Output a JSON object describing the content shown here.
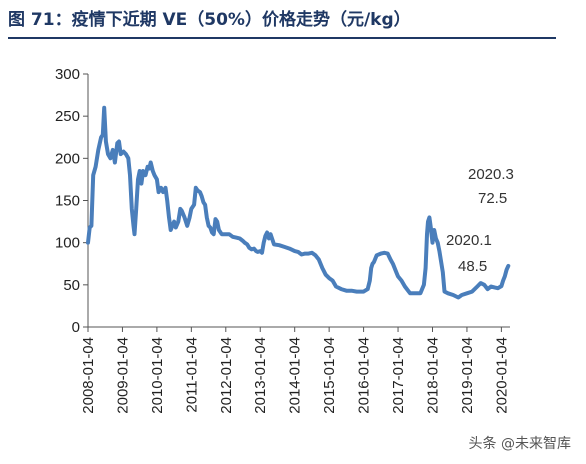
{
  "title": "图 71：疫情下近期 VE（50%）价格走势（元/kg）",
  "watermark": "头条 @未来智库",
  "chart_data": {
    "type": "line",
    "series": [
      {
        "color": "#4a7ebb",
        "points": [
          [
            2008.0,
            100
          ],
          [
            2008.05,
            118
          ],
          [
            2008.1,
            120
          ],
          [
            2008.15,
            180
          ],
          [
            2008.22,
            190
          ],
          [
            2008.3,
            210
          ],
          [
            2008.38,
            225
          ],
          [
            2008.43,
            228
          ],
          [
            2008.47,
            260
          ],
          [
            2008.52,
            220
          ],
          [
            2008.58,
            205
          ],
          [
            2008.65,
            200
          ],
          [
            2008.72,
            210
          ],
          [
            2008.78,
            195
          ],
          [
            2008.85,
            218
          ],
          [
            2008.9,
            220
          ],
          [
            2008.95,
            205
          ],
          [
            2009.03,
            208
          ],
          [
            2009.1,
            205
          ],
          [
            2009.17,
            200
          ],
          [
            2009.22,
            180
          ],
          [
            2009.27,
            140
          ],
          [
            2009.32,
            120
          ],
          [
            2009.35,
            110
          ],
          [
            2009.4,
            140
          ],
          [
            2009.45,
            175
          ],
          [
            2009.5,
            185
          ],
          [
            2009.55,
            170
          ],
          [
            2009.6,
            185
          ],
          [
            2009.67,
            180
          ],
          [
            2009.73,
            190
          ],
          [
            2009.78,
            188
          ],
          [
            2009.82,
            195
          ],
          [
            2009.88,
            185
          ],
          [
            2009.93,
            180
          ],
          [
            2010.0,
            175
          ],
          [
            2010.05,
            160
          ],
          [
            2010.12,
            165
          ],
          [
            2010.18,
            160
          ],
          [
            2010.25,
            165
          ],
          [
            2010.3,
            150
          ],
          [
            2010.35,
            130
          ],
          [
            2010.4,
            115
          ],
          [
            2010.45,
            120
          ],
          [
            2010.5,
            125
          ],
          [
            2010.55,
            118
          ],
          [
            2010.62,
            125
          ],
          [
            2010.68,
            140
          ],
          [
            2010.72,
            138
          ],
          [
            2010.8,
            130
          ],
          [
            2010.88,
            120
          ],
          [
            2010.95,
            130
          ],
          [
            2011.0,
            140
          ],
          [
            2011.08,
            145
          ],
          [
            2011.13,
            165
          ],
          [
            2011.18,
            162
          ],
          [
            2011.25,
            160
          ],
          [
            2011.3,
            155
          ],
          [
            2011.35,
            148
          ],
          [
            2011.4,
            145
          ],
          [
            2011.45,
            130
          ],
          [
            2011.5,
            120
          ],
          [
            2011.55,
            118
          ],
          [
            2011.6,
            112
          ],
          [
            2011.65,
            110
          ],
          [
            2011.7,
            128
          ],
          [
            2011.75,
            125
          ],
          [
            2011.8,
            115
          ],
          [
            2011.88,
            110
          ],
          [
            2012.0,
            110
          ],
          [
            2012.1,
            110
          ],
          [
            2012.2,
            107
          ],
          [
            2012.3,
            106
          ],
          [
            2012.4,
            105
          ],
          [
            2012.5,
            102
          ],
          [
            2012.55,
            100
          ],
          [
            2012.62,
            98
          ],
          [
            2012.68,
            94
          ],
          [
            2012.75,
            92
          ],
          [
            2012.82,
            93
          ],
          [
            2012.88,
            90
          ],
          [
            2012.93,
            89
          ],
          [
            2013.0,
            90
          ],
          [
            2013.05,
            88
          ],
          [
            2013.1,
            100
          ],
          [
            2013.15,
            108
          ],
          [
            2013.2,
            112
          ],
          [
            2013.25,
            105
          ],
          [
            2013.3,
            110
          ],
          [
            2013.4,
            98
          ],
          [
            2013.55,
            97
          ],
          [
            2013.7,
            95
          ],
          [
            2013.85,
            93
          ],
          [
            2014.0,
            90
          ],
          [
            2014.1,
            89
          ],
          [
            2014.2,
            86
          ],
          [
            2014.3,
            87
          ],
          [
            2014.4,
            87
          ],
          [
            2014.5,
            88
          ],
          [
            2014.6,
            85
          ],
          [
            2014.7,
            80
          ],
          [
            2014.8,
            70
          ],
          [
            2014.9,
            62
          ],
          [
            2015.0,
            58
          ],
          [
            2015.1,
            55
          ],
          [
            2015.2,
            48
          ],
          [
            2015.35,
            45
          ],
          [
            2015.5,
            43
          ],
          [
            2015.65,
            43
          ],
          [
            2015.8,
            42
          ],
          [
            2015.95,
            42
          ],
          [
            2016.0,
            42
          ],
          [
            2016.12,
            45
          ],
          [
            2016.18,
            55
          ],
          [
            2016.22,
            70
          ],
          [
            2016.26,
            75
          ],
          [
            2016.3,
            77
          ],
          [
            2016.38,
            85
          ],
          [
            2016.5,
            87
          ],
          [
            2016.6,
            88
          ],
          [
            2016.7,
            87
          ],
          [
            2016.78,
            80
          ],
          [
            2016.85,
            75
          ],
          [
            2016.9,
            70
          ],
          [
            2016.95,
            65
          ],
          [
            2017.0,
            60
          ],
          [
            2017.1,
            55
          ],
          [
            2017.2,
            48
          ],
          [
            2017.35,
            40
          ],
          [
            2017.5,
            40
          ],
          [
            2017.65,
            40
          ],
          [
            2017.75,
            50
          ],
          [
            2017.8,
            70
          ],
          [
            2017.84,
            110
          ],
          [
            2017.87,
            125
          ],
          [
            2017.91,
            130
          ],
          [
            2017.95,
            118
          ],
          [
            2018.0,
            100
          ],
          [
            2018.05,
            115
          ],
          [
            2018.1,
            105
          ],
          [
            2018.15,
            100
          ],
          [
            2018.2,
            90
          ],
          [
            2018.3,
            65
          ],
          [
            2018.35,
            42
          ],
          [
            2018.45,
            40
          ],
          [
            2018.6,
            38
          ],
          [
            2018.75,
            35
          ],
          [
            2018.85,
            38
          ],
          [
            2019.0,
            40
          ],
          [
            2019.15,
            42
          ],
          [
            2019.3,
            48
          ],
          [
            2019.4,
            52
          ],
          [
            2019.5,
            50
          ],
          [
            2019.6,
            45
          ],
          [
            2019.7,
            48
          ],
          [
            2019.8,
            47
          ],
          [
            2019.9,
            46
          ],
          [
            2020.0,
            48.5
          ],
          [
            2020.05,
            55
          ],
          [
            2020.1,
            60
          ],
          [
            2020.15,
            68
          ],
          [
            2020.2,
            72.5
          ]
        ]
      }
    ],
    "x_ticks": [
      "2008-01-04",
      "2009-01-04",
      "2010-01-04",
      "2011-01-04",
      "2012-01-04",
      "2013-01-04",
      "2014-01-04",
      "2015-01-04",
      "2016-01-04",
      "2017-01-04",
      "2018-01-04",
      "2019-01-04",
      "2020-01-04"
    ],
    "x_tick_values": [
      2008,
      2009,
      2010,
      2011,
      2012,
      2013,
      2014,
      2015,
      2016,
      2017,
      2018,
      2019,
      2020
    ],
    "xlim": [
      2008.0,
      2020.25
    ],
    "ylim": [
      0,
      300
    ],
    "y_ticks": [
      0,
      50,
      100,
      150,
      200,
      250,
      300
    ],
    "grid": false,
    "annotations": [
      {
        "label_date": "2020.3",
        "label_value": "72.5"
      },
      {
        "label_date": "2020.1",
        "label_value": "48.5"
      }
    ]
  }
}
